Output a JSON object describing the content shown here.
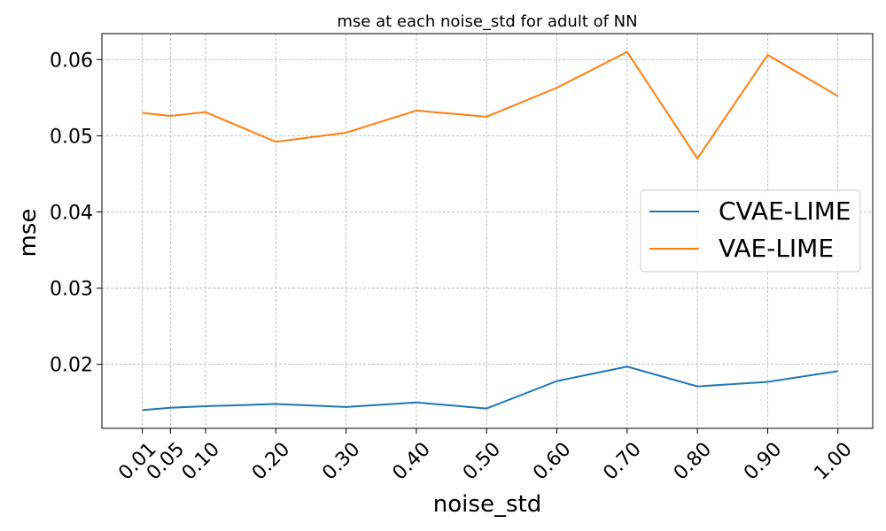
{
  "chart_data": {
    "type": "line",
    "title": "mse at each noise_std for adult of NN",
    "xlabel": "noise_std",
    "ylabel": "mse",
    "x": [
      0.01,
      0.05,
      0.1,
      0.2,
      0.3,
      0.4,
      0.5,
      0.6,
      0.7,
      0.8,
      0.9,
      1.0
    ],
    "x_tick_labels": [
      "0.01",
      "0.05",
      "0.10",
      "0.20",
      "0.30",
      "0.40",
      "0.50",
      "0.60",
      "0.70",
      "0.80",
      "0.90",
      "1.00"
    ],
    "y_ticks": [
      0.02,
      0.03,
      0.04,
      0.05,
      0.06
    ],
    "y_tick_labels": [
      "0.02",
      "0.03",
      "0.04",
      "0.05",
      "0.06"
    ],
    "xlim": [
      -0.0475,
      1.0495
    ],
    "ylim": [
      0.0116,
      0.0634
    ],
    "grid": true,
    "legend_position": "center-right",
    "series": [
      {
        "name": "CVAE-LIME",
        "color": "#1f77b4",
        "values": [
          0.014,
          0.0143,
          0.0145,
          0.0148,
          0.0144,
          0.015,
          0.0142,
          0.0178,
          0.0197,
          0.0171,
          0.0177,
          0.0191
        ]
      },
      {
        "name": "VAE-LIME",
        "color": "#ff7f0e",
        "values": [
          0.053,
          0.0526,
          0.0531,
          0.0492,
          0.0504,
          0.0533,
          0.0525,
          0.0563,
          0.061,
          0.047,
          0.0606,
          0.0552
        ]
      }
    ]
  }
}
